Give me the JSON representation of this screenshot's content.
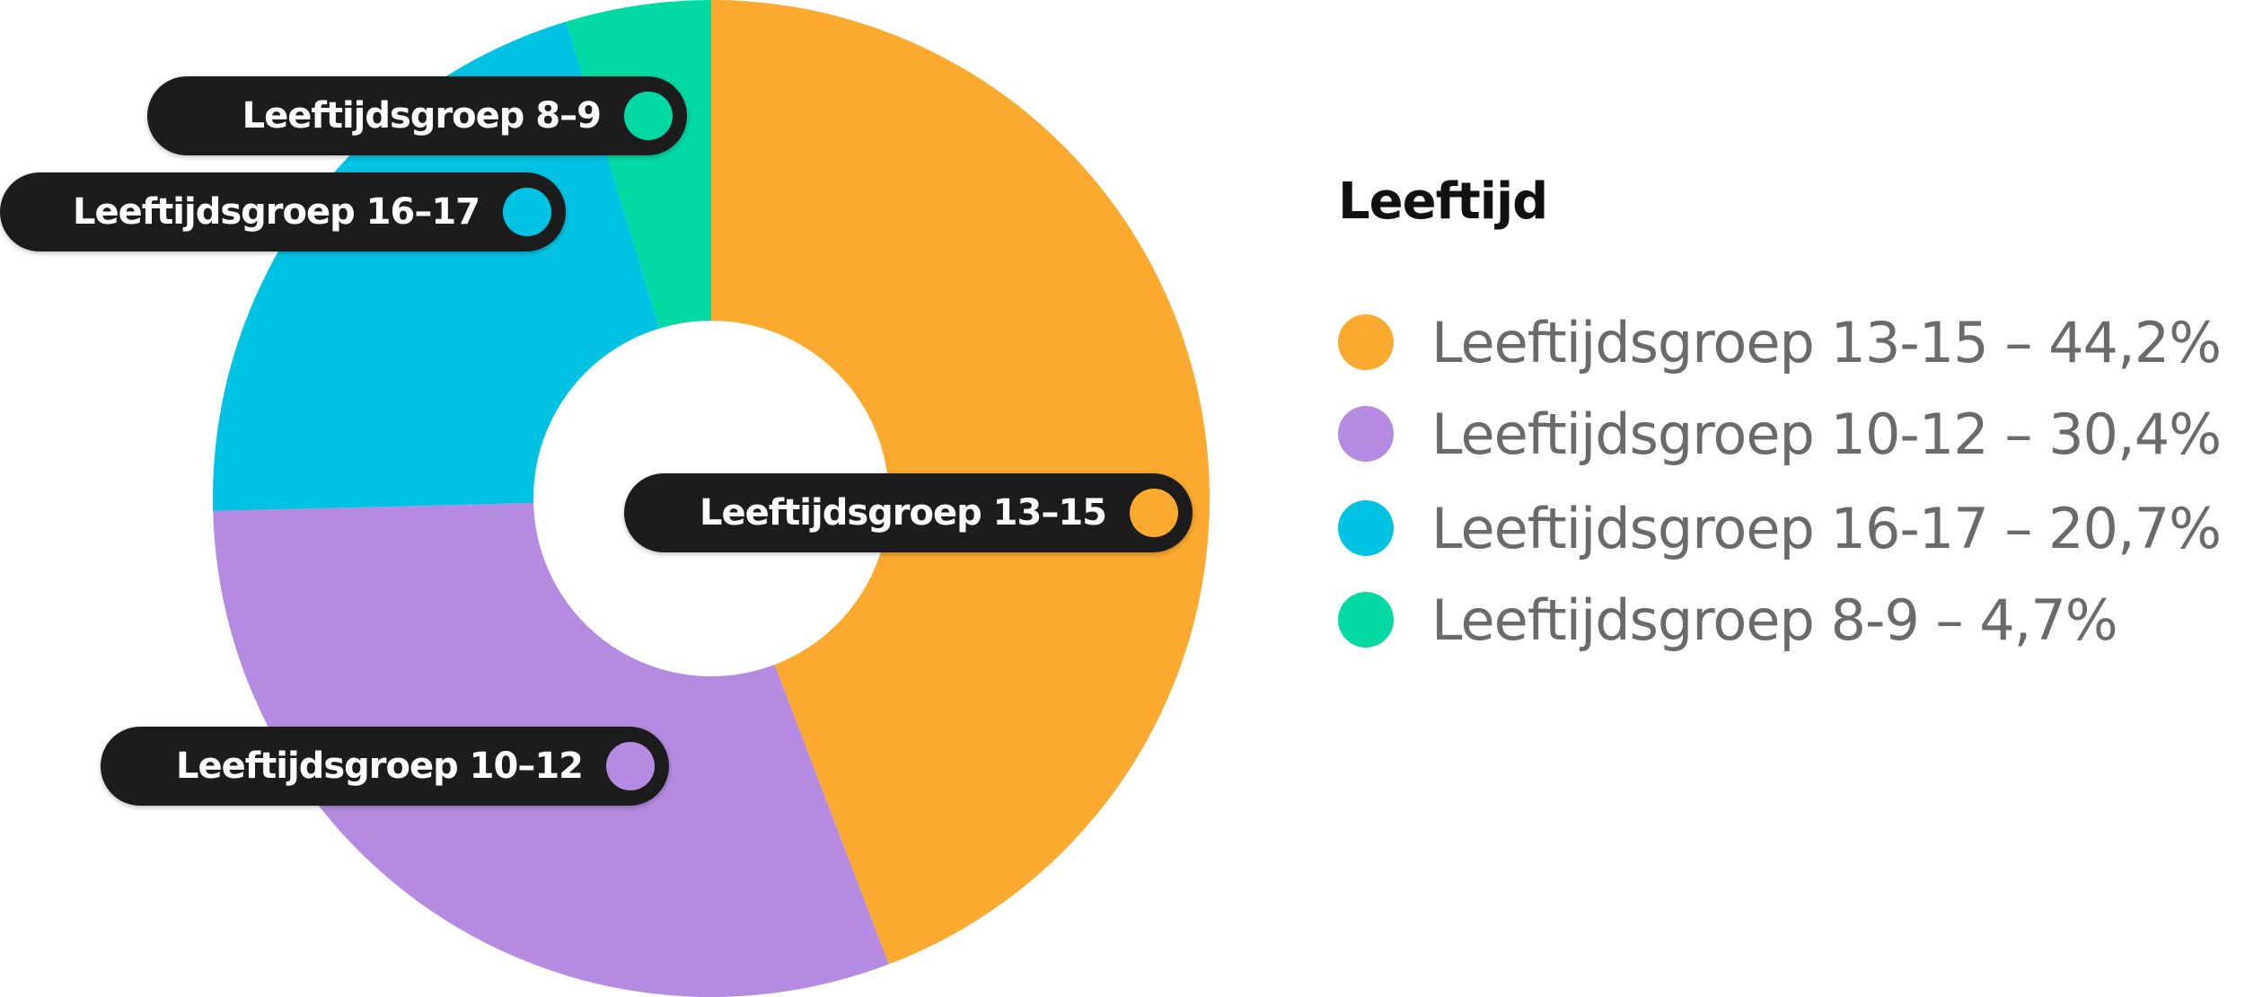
{
  "chart_data": {
    "type": "pie",
    "subtype": "donut",
    "title": "Leeftijd",
    "categories": [
      "Leeftijdsgroep 13-15",
      "Leeftijdsgroep 10-12",
      "Leeftijdsgroep 16-17",
      "Leeftijdsgroep 8-9"
    ],
    "values": [
      44.2,
      30.4,
      20.7,
      4.7
    ],
    "unit": "%",
    "colors": [
      "#FBA92F",
      "#B48BE0",
      "#00C3E3",
      "#03D9A2"
    ],
    "legend_position": "right",
    "start_angle": "12 o'clock, clockwise"
  },
  "labels": [
    {
      "text": "Leeftijdsgroep 8–9",
      "color": "#03D9A2"
    },
    {
      "text": "Leeftijdsgroep 16–17",
      "color": "#00C3E3"
    },
    {
      "text": "Leeftijdsgroep 13–15",
      "color": "#FBA92F"
    },
    {
      "text": "Leeftijdsgroep 10–12",
      "color": "#B48BE0"
    }
  ],
  "legend": {
    "title": "Leeftijd",
    "items": [
      {
        "text": "Leeftijdsgroep 13-15 – 44,2%",
        "color": "#FBA92F"
      },
      {
        "text": "Leeftijdsgroep 10-12 – 30,4%",
        "color": "#B48BE0"
      },
      {
        "text": "Leeftijdsgroep 16-17 – 20,7%",
        "color": "#00C3E3"
      },
      {
        "text": "Leeftijdsgroep 8-9 – 4,7%",
        "color": "#03D9A2"
      }
    ]
  }
}
